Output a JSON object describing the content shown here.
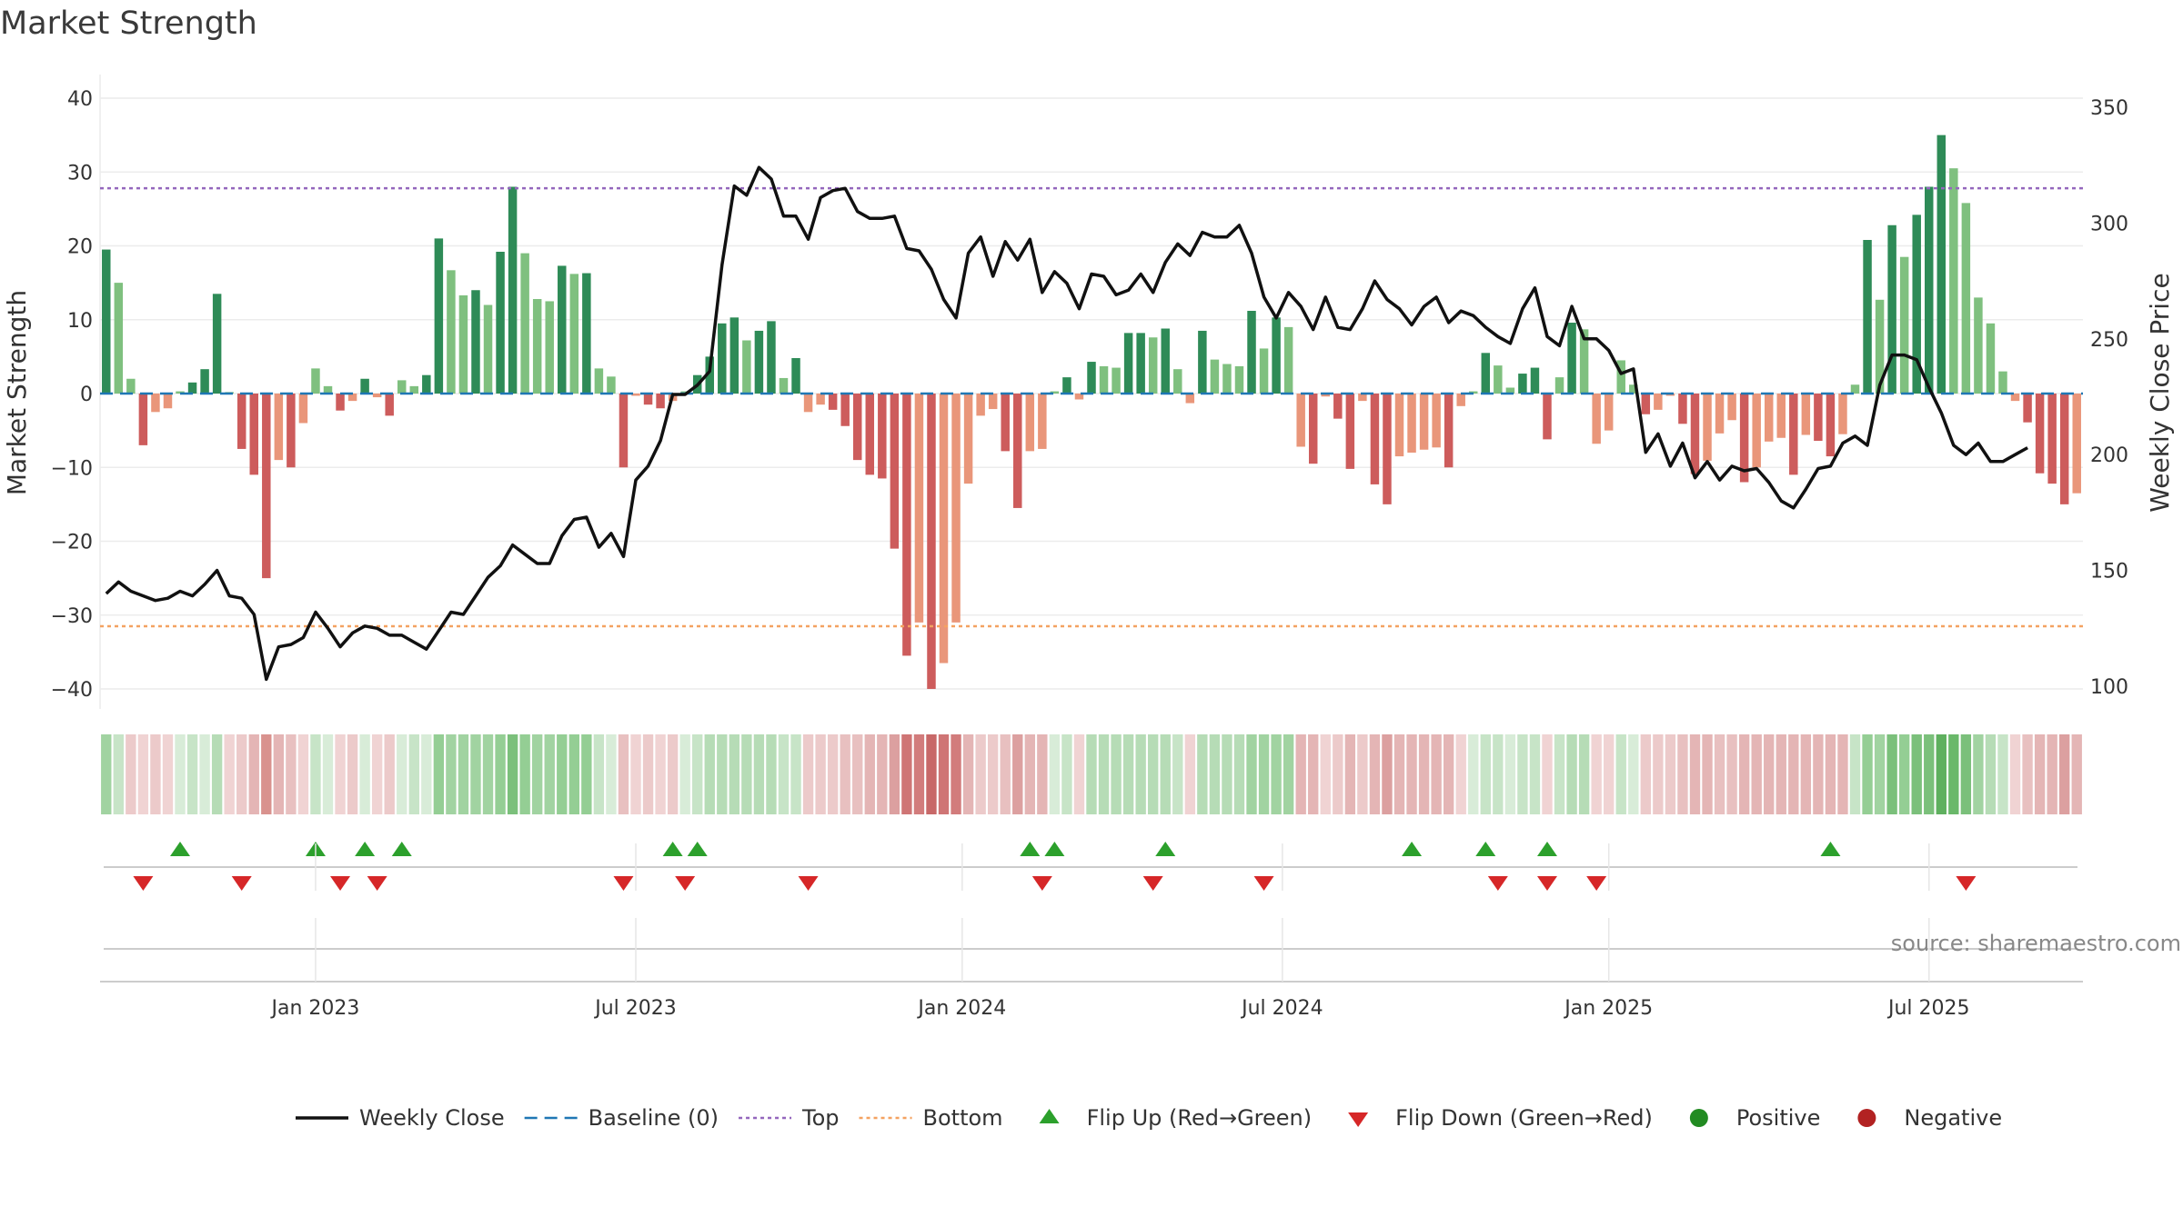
{
  "title": "Market Strength",
  "source": "source: sharemaestro.com",
  "colors": {
    "strong_pos": "#2e8b57",
    "weak_pos": "#7fc07f",
    "strong_neg": "#cd5c5c",
    "weak_neg": "#e9967a",
    "close_line": "#111111",
    "baseline": "#1f77b4",
    "top": "#9467bd",
    "bottom": "#f4a261",
    "flip_up": "#2ca02c",
    "flip_down": "#d62728",
    "positive": "#228b22",
    "negative": "#b22222"
  },
  "chart_data": {
    "type": "bar",
    "title": "Market Strength",
    "ylabel": "Market Strength",
    "y2label": "Weekly Close Price",
    "ylim": [
      -40,
      40
    ],
    "yticks": [
      -40,
      -30,
      -20,
      -10,
      0,
      10,
      20,
      30,
      40
    ],
    "ytick_labels": [
      "−40",
      "−30",
      "−20",
      "−10",
      "0",
      "10",
      "20",
      "30",
      "40"
    ],
    "y2lim": [
      100,
      350
    ],
    "y2ticks": [
      100,
      150,
      200,
      250,
      300,
      350
    ],
    "ytick2_labels": [
      "100",
      "150",
      "200",
      "250",
      "300",
      "350"
    ],
    "top_threshold": 27.8,
    "bottom_threshold": -31.5,
    "week_start": "2022-09-05",
    "x_labels": [
      {
        "label": "Jan 2023",
        "week": 17
      },
      {
        "label": "Jul 2023",
        "week": 43
      },
      {
        "label": "Jan 2024",
        "week": 69.5
      },
      {
        "label": "Jul 2024",
        "week": 95.5
      },
      {
        "label": "Jan 2025",
        "week": 122
      },
      {
        "label": "Jul 2025",
        "week": 148
      }
    ],
    "strength": [
      19.5,
      15,
      2,
      -7,
      -2.5,
      -2,
      0.3,
      1.5,
      3.3,
      13.5,
      0.2,
      -7.5,
      -11,
      -25,
      -9,
      -10,
      -4,
      3.4,
      1,
      -2.3,
      -1,
      2,
      -0.5,
      -3,
      1.8,
      1,
      2.5,
      21,
      16.7,
      13.3,
      14,
      12,
      19.2,
      28,
      19,
      12.8,
      12.5,
      17.3,
      16.2,
      16.3,
      3.4,
      2.3,
      -10,
      -0.3,
      -1.5,
      -2,
      -1,
      0.3,
      2.5,
      5,
      9.5,
      10.3,
      7.2,
      8.5,
      9.8,
      2.1,
      4.8,
      -2.5,
      -1.5,
      -2.2,
      -4.4,
      -9,
      -11,
      -11.5,
      -21,
      -35.5,
      -31,
      -40,
      -36.5,
      -31,
      -12.2,
      -3,
      -2.1,
      -7.8,
      -15.5,
      -7.8,
      -7.5,
      0.3,
      2.2,
      -0.8,
      4.3,
      3.7,
      3.5,
      8.2,
      8.2,
      7.6,
      8.8,
      3.3,
      -1.3,
      8.5,
      4.6,
      4,
      3.7,
      11.2,
      6.1,
      10.3,
      9,
      -7.2,
      -9.5,
      -0.4,
      -3.4,
      -10.2,
      -1,
      -12.3,
      -15,
      -8.5,
      -8,
      -7.6,
      -7.3,
      -10,
      -1.7,
      0.3,
      5.5,
      3.8,
      0.8,
      2.7,
      3.5,
      -6.2,
      2.2,
      9.6,
      8.7,
      -6.8,
      -5,
      4.5,
      1.2,
      -2.8,
      -2.2,
      -0.3,
      -4.1,
      -10.9,
      -9.1,
      -5.4,
      -3.6,
      -12,
      -10,
      -6.5,
      -6,
      -11,
      -5.6,
      -6.4,
      -8.5,
      -5.5,
      1.2,
      20.8,
      12.7,
      22.8,
      18.5,
      24.2,
      28,
      35,
      30.5,
      25.8,
      13,
      9.5,
      3,
      -1,
      -3.9,
      -10.8,
      -12.2,
      -15,
      -13.5
    ]
  },
  "close_series": {
    "weeks": [
      0,
      1,
      2,
      3,
      4,
      5,
      6,
      7,
      8,
      9,
      10,
      11,
      12,
      13,
      14,
      15,
      16,
      17,
      18,
      19,
      20,
      21,
      22,
      23,
      24,
      25,
      26,
      27,
      28,
      29,
      30,
      31,
      32,
      33,
      34,
      35,
      36,
      37,
      38,
      39,
      40,
      41,
      42,
      43,
      44,
      45,
      46,
      47,
      48,
      49,
      50,
      51,
      52,
      53,
      54,
      55,
      56,
      57,
      58,
      59,
      60,
      61,
      62,
      63,
      64,
      65,
      66,
      67,
      68,
      69,
      70,
      71,
      72,
      73,
      74,
      75,
      76,
      77,
      78,
      79,
      80,
      81,
      82,
      83,
      84,
      85,
      86,
      87,
      88,
      89,
      90,
      91,
      92,
      93,
      94,
      95,
      96,
      97,
      98,
      99,
      100,
      101,
      102,
      103,
      104,
      105,
      106,
      107,
      108,
      109,
      110,
      111,
      112,
      113,
      114,
      115,
      116,
      117,
      118,
      119,
      120,
      121,
      122,
      123,
      124,
      125,
      126,
      127,
      128,
      129,
      130,
      131,
      132,
      133,
      134,
      135,
      136,
      137,
      138,
      139,
      140,
      141,
      142,
      143,
      144,
      145,
      146,
      147,
      148,
      149,
      150,
      151,
      152,
      153,
      154,
      155,
      156
    ],
    "values": [
      140,
      145,
      141,
      139,
      137,
      138,
      141,
      139,
      144,
      150,
      139,
      138,
      131,
      103,
      117,
      118,
      121,
      132,
      125,
      117,
      123,
      126,
      125,
      122,
      122,
      119,
      116,
      124,
      132,
      131,
      139,
      147,
      152,
      161,
      157,
      153,
      153,
      165,
      172,
      173,
      160,
      166,
      156,
      189,
      195,
      206,
      226,
      226,
      230,
      236,
      282,
      316,
      312,
      324,
      319,
      303,
      303,
      293,
      311,
      314,
      315,
      305,
      302,
      302,
      303,
      289,
      288,
      280,
      267,
      259,
      287,
      294,
      277,
      292,
      284,
      293,
      270,
      279,
      274,
      263,
      278,
      277,
      269,
      271,
      278,
      270,
      283,
      291,
      286,
      296,
      294,
      294,
      299,
      287,
      268,
      259,
      270,
      264,
      254,
      268,
      255,
      254,
      263,
      275,
      267,
      263,
      256,
      264,
      268,
      257,
      262,
      260,
      255,
      251,
      248,
      263,
      272,
      251,
      247,
      264,
      250,
      250,
      245,
      235,
      237,
      201,
      209,
      195,
      205,
      190,
      197,
      189,
      195,
      193,
      194,
      188,
      180,
      177,
      185,
      194,
      195,
      205,
      208,
      204,
      230,
      243,
      243,
      241,
      229,
      218,
      204,
      200,
      205,
      197,
      197,
      200,
      203
    ]
  },
  "heat_strip": [
    {
      "c": "#a1d3a1"
    },
    {
      "c": "#c7e4c7"
    },
    {
      "c": "#eccaca"
    },
    {
      "c": "#f0d3d3"
    },
    {
      "c": "#eccaca"
    },
    {
      "c": "#f0d3d3"
    },
    {
      "c": "#d8ecd8"
    },
    {
      "c": "#c7e4c7"
    },
    {
      "c": "#d8ecd8"
    },
    {
      "c": "#b6dcb6"
    },
    {
      "c": "#f0d3d3"
    },
    {
      "c": "#eccaca"
    },
    {
      "c": "#e4b5b5"
    },
    {
      "c": "#d9928e"
    },
    {
      "c": "#e4b5b5"
    },
    {
      "c": "#e8c0c0"
    },
    {
      "c": "#f0d3d3"
    },
    {
      "c": "#c7e4c7"
    },
    {
      "c": "#d8ecd8"
    },
    {
      "c": "#f0d3d3"
    },
    {
      "c": "#eccaca"
    },
    {
      "c": "#d8ecd8"
    },
    {
      "c": "#f0d3d3"
    },
    {
      "c": "#eccaca"
    },
    {
      "c": "#d8ecd8"
    },
    {
      "c": "#c7e4c7"
    },
    {
      "c": "#d8ecd8"
    },
    {
      "c": "#94ce94"
    },
    {
      "c": "#a1d3a1"
    },
    {
      "c": "#a1d3a1"
    },
    {
      "c": "#a1d3a1"
    },
    {
      "c": "#a1d3a1"
    },
    {
      "c": "#94ce94"
    },
    {
      "c": "#7bc07b"
    },
    {
      "c": "#94ce94"
    },
    {
      "c": "#a1d3a1"
    },
    {
      "c": "#a1d3a1"
    },
    {
      "c": "#94ce94"
    },
    {
      "c": "#94ce94"
    },
    {
      "c": "#94ce94"
    },
    {
      "c": "#c7e4c7"
    },
    {
      "c": "#d8ecd8"
    },
    {
      "c": "#e8c0c0"
    },
    {
      "c": "#f0d3d3"
    },
    {
      "c": "#eccaca"
    },
    {
      "c": "#f0d3d3"
    },
    {
      "c": "#eccaca"
    },
    {
      "c": "#d8ecd8"
    },
    {
      "c": "#c7e4c7"
    },
    {
      "c": "#b6dcb6"
    },
    {
      "c": "#b6dcb6"
    },
    {
      "c": "#b6dcb6"
    },
    {
      "c": "#b6dcb6"
    },
    {
      "c": "#b6dcb6"
    },
    {
      "c": "#b6dcb6"
    },
    {
      "c": "#c7e4c7"
    },
    {
      "c": "#c7e4c7"
    },
    {
      "c": "#eccaca"
    },
    {
      "c": "#eccaca"
    },
    {
      "c": "#eccaca"
    },
    {
      "c": "#e8c0c0"
    },
    {
      "c": "#e8c0c0"
    },
    {
      "c": "#e4b5b5"
    },
    {
      "c": "#e4b5b5"
    },
    {
      "c": "#dca0a0"
    },
    {
      "c": "#cf7575"
    },
    {
      "c": "#d27c7c"
    },
    {
      "c": "#c86868"
    },
    {
      "c": "#cf7575"
    },
    {
      "c": "#d27c7c"
    },
    {
      "c": "#e4b5b5"
    },
    {
      "c": "#eccaca"
    },
    {
      "c": "#eccaca"
    },
    {
      "c": "#e8c0c0"
    },
    {
      "c": "#dca0a0"
    },
    {
      "c": "#e4b5b5"
    },
    {
      "c": "#e4b5b5"
    },
    {
      "c": "#d8ecd8"
    },
    {
      "c": "#c7e4c7"
    },
    {
      "c": "#f0d3d3"
    },
    {
      "c": "#b6dcb6"
    },
    {
      "c": "#b6dcb6"
    },
    {
      "c": "#b6dcb6"
    },
    {
      "c": "#b6dcb6"
    },
    {
      "c": "#b6dcb6"
    },
    {
      "c": "#b6dcb6"
    },
    {
      "c": "#b6dcb6"
    },
    {
      "c": "#c7e4c7"
    },
    {
      "c": "#f0d3d3"
    },
    {
      "c": "#b6dcb6"
    },
    {
      "c": "#b6dcb6"
    },
    {
      "c": "#b6dcb6"
    },
    {
      "c": "#b6dcb6"
    },
    {
      "c": "#a1d3a1"
    },
    {
      "c": "#a1d3a1"
    },
    {
      "c": "#a1d3a1"
    },
    {
      "c": "#a1d3a1"
    },
    {
      "c": "#e4b5b5"
    },
    {
      "c": "#e4b5b5"
    },
    {
      "c": "#f0d3d3"
    },
    {
      "c": "#eccaca"
    },
    {
      "c": "#e4b5b5"
    },
    {
      "c": "#eccaca"
    },
    {
      "c": "#e4b5b5"
    },
    {
      "c": "#dca0a0"
    },
    {
      "c": "#e4b5b5"
    },
    {
      "c": "#e4b5b5"
    },
    {
      "c": "#e4b5b5"
    },
    {
      "c": "#e4b5b5"
    },
    {
      "c": "#e4b5b5"
    },
    {
      "c": "#f0d3d3"
    },
    {
      "c": "#d8ecd8"
    },
    {
      "c": "#c7e4c7"
    },
    {
      "c": "#c7e4c7"
    },
    {
      "c": "#d8ecd8"
    },
    {
      "c": "#c7e4c7"
    },
    {
      "c": "#c7e4c7"
    },
    {
      "c": "#f0d3d3"
    },
    {
      "c": "#c7e4c7"
    },
    {
      "c": "#b6dcb6"
    },
    {
      "c": "#b6dcb6"
    },
    {
      "c": "#f0d3d3"
    },
    {
      "c": "#f0d3d3"
    },
    {
      "c": "#c7e4c7"
    },
    {
      "c": "#d8ecd8"
    },
    {
      "c": "#eccaca"
    },
    {
      "c": "#eccaca"
    },
    {
      "c": "#eccaca"
    },
    {
      "c": "#e8c0c0"
    },
    {
      "c": "#e4b5b5"
    },
    {
      "c": "#e4b5b5"
    },
    {
      "c": "#e8c0c0"
    },
    {
      "c": "#e8c0c0"
    },
    {
      "c": "#e4b5b5"
    },
    {
      "c": "#e4b5b5"
    },
    {
      "c": "#e4b5b5"
    },
    {
      "c": "#e4b5b5"
    },
    {
      "c": "#e4b5b5"
    },
    {
      "c": "#e4b5b5"
    },
    {
      "c": "#e4b5b5"
    },
    {
      "c": "#e4b5b5"
    },
    {
      "c": "#e4b5b5"
    },
    {
      "c": "#c7e4c7"
    },
    {
      "c": "#94ce94"
    },
    {
      "c": "#a1d3a1"
    },
    {
      "c": "#7bc07b"
    },
    {
      "c": "#94ce94"
    },
    {
      "c": "#7bc07b"
    },
    {
      "c": "#7bc07b"
    },
    {
      "c": "#5fb05f"
    },
    {
      "c": "#6ab86a"
    },
    {
      "c": "#7bc07b"
    },
    {
      "c": "#a1d3a1"
    },
    {
      "c": "#b6dcb6"
    },
    {
      "c": "#c7e4c7"
    },
    {
      "c": "#f0d3d3"
    },
    {
      "c": "#e8c0c0"
    },
    {
      "c": "#e4b5b5"
    },
    {
      "c": "#e4b5b5"
    },
    {
      "c": "#dca0a0"
    },
    {
      "c": "#e4b5b5"
    }
  ],
  "flip_up_weeks": [
    6,
    17,
    21,
    24,
    46,
    48,
    75,
    77,
    86,
    106,
    112,
    117,
    140
  ],
  "flip_down_weeks": [
    3,
    11,
    19,
    22,
    42,
    47,
    57,
    76,
    85,
    94,
    113,
    117,
    121,
    151
  ],
  "legend": [
    {
      "label": "Weekly Close",
      "symbol": "line"
    },
    {
      "label": "Baseline (0)",
      "symbol": "dash"
    },
    {
      "label": "Top",
      "symbol": "dot-purple"
    },
    {
      "label": "Bottom",
      "symbol": "dot-orange"
    },
    {
      "label": "Flip Up (Red→Green)",
      "symbol": "tri-up"
    },
    {
      "label": "Flip Down (Green→Red)",
      "symbol": "tri-down"
    },
    {
      "label": "Positive",
      "symbol": "circle-green"
    },
    {
      "label": "Negative",
      "symbol": "circle-red"
    }
  ]
}
